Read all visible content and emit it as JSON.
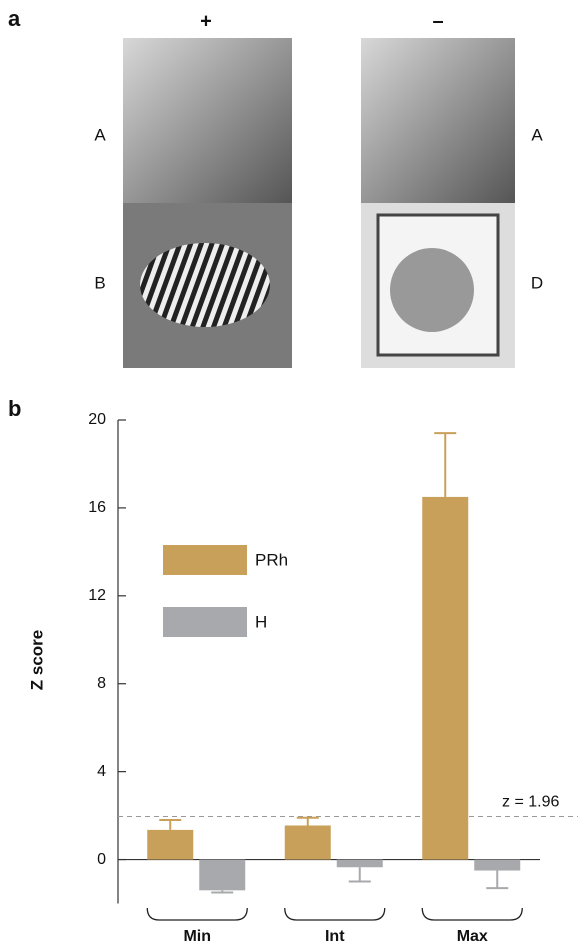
{
  "panel_a": {
    "label": "a",
    "columns": [
      "+",
      "–"
    ],
    "rows_left": [
      "A",
      "B"
    ],
    "rows_right": [
      "A",
      "D"
    ]
  },
  "chart_data": {
    "type": "bar",
    "panel_label": "b",
    "y_label": "Z score",
    "categories": [
      "Min",
      "Int",
      "Max"
    ],
    "series": [
      {
        "name": "PRh",
        "color": "#c9a05a",
        "values": [
          1.35,
          1.55,
          16.5
        ],
        "errors": [
          0.45,
          0.35,
          2.9
        ]
      },
      {
        "name": "H",
        "color": "#a8a9ad",
        "values": [
          -1.4,
          -0.35,
          -0.5
        ],
        "errors": [
          0.1,
          0.65,
          0.8
        ]
      }
    ],
    "ylim": [
      -2,
      20
    ],
    "yticks": [
      0,
      4,
      8,
      12,
      16,
      20
    ],
    "threshold": {
      "value": 1.96,
      "label": "z = 1.96"
    }
  }
}
